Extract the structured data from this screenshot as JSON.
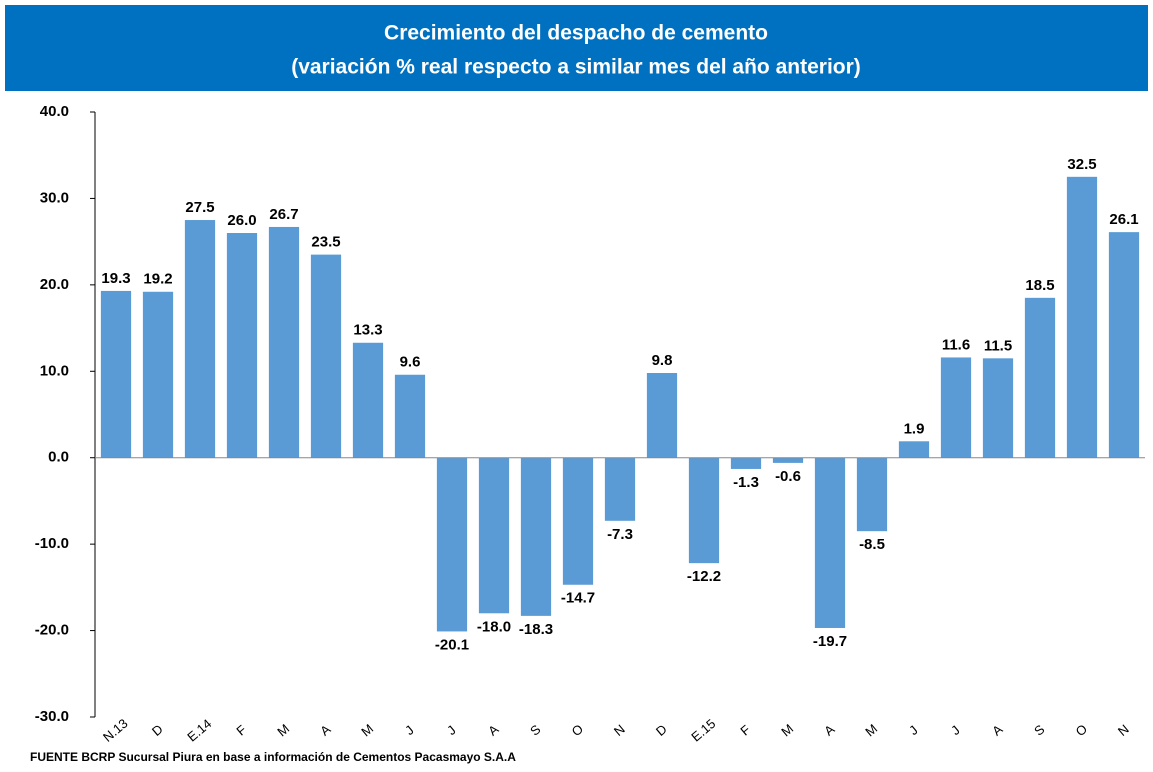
{
  "chart_data": {
    "type": "bar",
    "title": "Crecimiento del despacho de cemento",
    "subtitle": "(variación % real respecto a similar mes del año anterior)",
    "categories": [
      "N.13",
      "D",
      "E.14",
      "F",
      "M",
      "A",
      "M",
      "J",
      "J",
      "A",
      "S",
      "O",
      "N",
      "D",
      "E.15",
      "F",
      "M",
      "A",
      "M",
      "J",
      "J",
      "A",
      "S",
      "O",
      "N"
    ],
    "values": [
      19.3,
      19.2,
      27.5,
      26.0,
      26.7,
      23.5,
      13.3,
      9.6,
      -20.1,
      -18.0,
      -18.3,
      -14.7,
      -7.3,
      9.8,
      -12.2,
      -1.3,
      -0.6,
      -19.7,
      -8.5,
      1.9,
      11.6,
      11.5,
      18.5,
      32.5,
      26.1
    ],
    "value_labels": [
      "19.3",
      "19.2",
      "27.5",
      "26.0",
      "26.7",
      "23.5",
      "13.3",
      "9.6",
      "-20.1",
      "-18.0",
      "-18.3",
      "-14.7",
      "-7.3",
      "9.8",
      "-12.2",
      "-1.3",
      "-0.6",
      "-19.7",
      "-8.5",
      "1.9",
      "11.6",
      "11.5",
      "18.5",
      "32.5",
      "26.1"
    ],
    "color": "#5b9bd5",
    "ylim": [
      -30,
      40
    ],
    "yticks": [
      {
        "value": -30,
        "label": "-30.0"
      },
      {
        "value": -20,
        "label": "-20.0"
      },
      {
        "value": -10,
        "label": "-10.0"
      },
      {
        "value": 0,
        "label": "0.0"
      },
      {
        "value": 10,
        "label": "10.0"
      },
      {
        "value": 20,
        "label": "20.0"
      },
      {
        "value": 30,
        "label": "30.0"
      },
      {
        "value": 40,
        "label": "40.0"
      }
    ],
    "grid": false,
    "source": "FUENTE BCRP Sucursal Piura en base a información de Cementos Pacasmayo S.A.A"
  }
}
